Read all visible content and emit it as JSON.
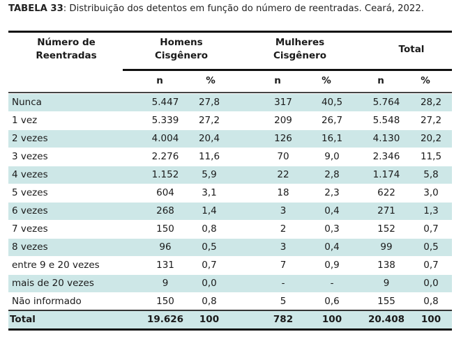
{
  "caption": {
    "label": "TABELA 33",
    "text": ": Distribuição dos detentos em função do número de reentradas. Ceará, 2022."
  },
  "header": {
    "col0": [
      "Número de",
      "Reentradas"
    ],
    "col1": [
      "Homens",
      "Cisgênero"
    ],
    "col2": [
      "Mulheres",
      "Cisgênero"
    ],
    "col3": [
      "Total"
    ],
    "sub": [
      "n",
      "%",
      "n",
      "%",
      "n",
      "%"
    ]
  },
  "rows": [
    {
      "label": "Nunca",
      "values": [
        "5.447",
        "27,8",
        "317",
        "40,5",
        "5.764",
        "28,2"
      ]
    },
    {
      "label": "1 vez",
      "values": [
        "5.339",
        "27,2",
        "209",
        "26,7",
        "5.548",
        "27,2"
      ]
    },
    {
      "label": "2 vezes",
      "values": [
        "4.004",
        "20,4",
        "126",
        "16,1",
        "4.130",
        "20,2"
      ]
    },
    {
      "label": "3 vezes",
      "values": [
        "2.276",
        "11,6",
        "70",
        "9,0",
        "2.346",
        "11,5"
      ]
    },
    {
      "label": "4 vezes",
      "values": [
        "1.152",
        "5,9",
        "22",
        "2,8",
        "1.174",
        "5,8"
      ]
    },
    {
      "label": "5 vezes",
      "values": [
        "604",
        "3,1",
        "18",
        "2,3",
        "622",
        "3,0"
      ]
    },
    {
      "label": "6 vezes",
      "values": [
        "268",
        "1,4",
        "3",
        "0,4",
        "271",
        "1,3"
      ]
    },
    {
      "label": "7 vezes",
      "values": [
        "150",
        "0,8",
        "2",
        "0,3",
        "152",
        "0,7"
      ]
    },
    {
      "label": "8 vezes",
      "values": [
        "96",
        "0,5",
        "3",
        "0,4",
        "99",
        "0,5"
      ]
    },
    {
      "label": "entre 9 e 20 vezes",
      "values": [
        "131",
        "0,7",
        "7",
        "0,9",
        "138",
        "0,7"
      ]
    },
    {
      "label": "mais de 20 vezes",
      "values": [
        "9",
        "0,0",
        "-",
        "-",
        "9",
        "0,0"
      ]
    },
    {
      "label": "Não informado",
      "values": [
        "150",
        "0,8",
        "5",
        "0,6",
        "155",
        "0,8"
      ]
    }
  ],
  "total": {
    "label": "Total",
    "values": [
      "19.626",
      "100",
      "782",
      "100",
      "20.408",
      "100"
    ]
  },
  "colors": {
    "shade": "#cde7e7",
    "rule": "#111111"
  }
}
